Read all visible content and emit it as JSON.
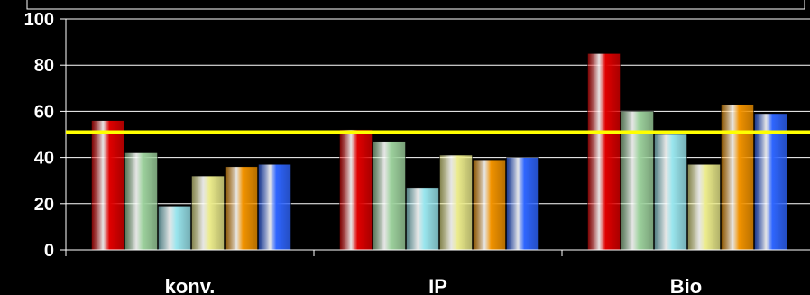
{
  "chart_data": {
    "type": "bar",
    "categories": [
      "konv.",
      "IP",
      "Bio"
    ],
    "series": [
      {
        "values": [
          56,
          52,
          85
        ],
        "color": "#e00000"
      },
      {
        "values": [
          42,
          47,
          60
        ],
        "color": "#9ed29e"
      },
      {
        "values": [
          19,
          27,
          50
        ],
        "color": "#9ae6ee"
      },
      {
        "values": [
          32,
          41,
          37
        ],
        "color": "#ecec8c"
      },
      {
        "values": [
          36,
          39,
          63
        ],
        "color": "#f29300"
      },
      {
        "values": [
          37,
          40,
          59
        ],
        "color": "#2f66ff"
      }
    ],
    "reference_line": {
      "value": 51,
      "color": "#ffff00"
    },
    "ylim": [
      0,
      100
    ],
    "yticks": [
      "0",
      "20",
      "40",
      "60",
      "80",
      "100"
    ],
    "grid": true,
    "background": "#000000",
    "text_color": "#ffffff"
  }
}
